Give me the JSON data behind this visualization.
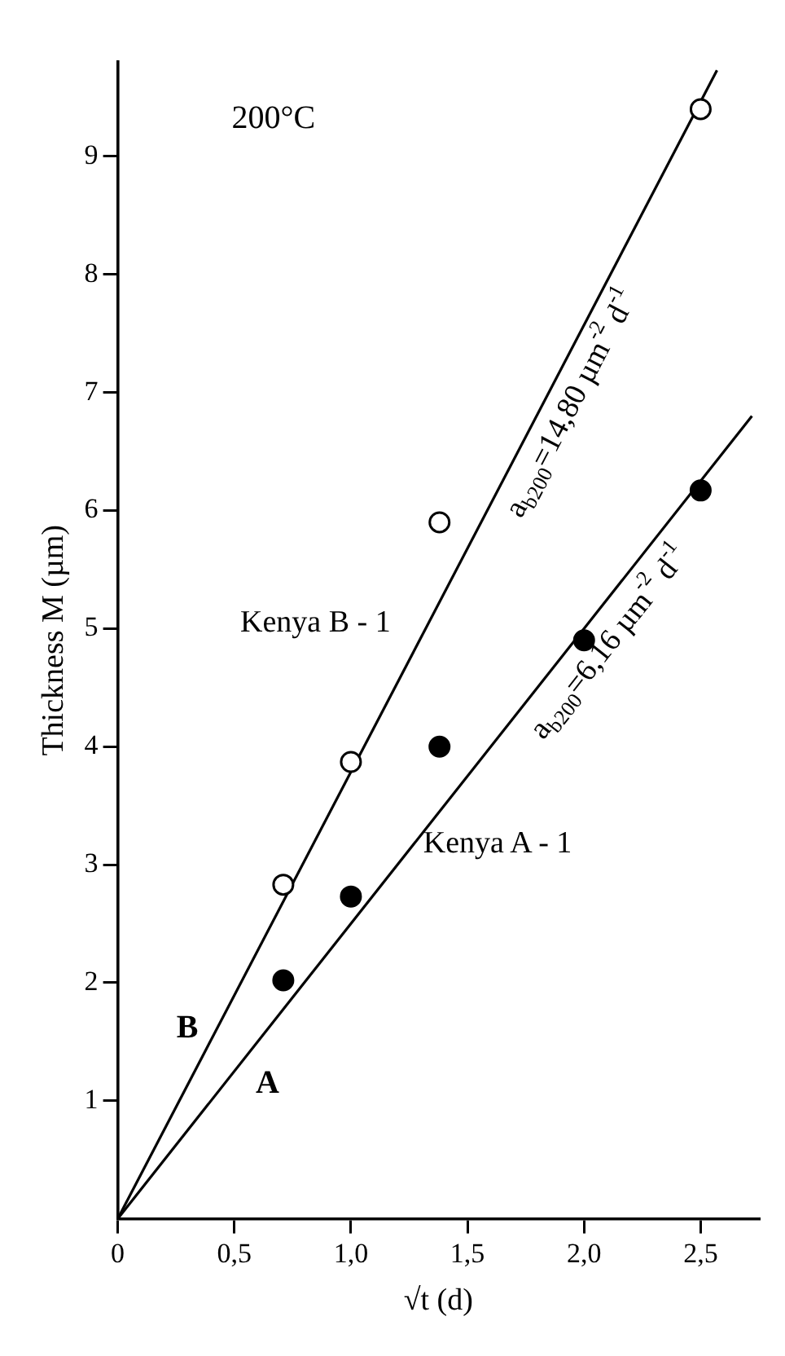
{
  "chart_data": {
    "type": "scatter",
    "title": "200°C",
    "xlabel": "√t (d)",
    "ylabel": "Thickness M (µm)",
    "xlim": [
      0,
      2.75
    ],
    "ylim": [
      0,
      9.8
    ],
    "xticks": [
      0,
      {
        "value": 0.5,
        "label": "0,5"
      },
      {
        "value": 1.0,
        "label": "1,0"
      },
      {
        "value": 1.5,
        "label": "1,5"
      },
      {
        "value": 2.0,
        "label": "2,0"
      },
      {
        "value": 2.5,
        "label": "2,5"
      }
    ],
    "yticks": [
      1,
      2,
      3,
      4,
      5,
      6,
      7,
      8,
      9
    ],
    "grid": false,
    "legend": false,
    "marker": "circle",
    "series": [
      {
        "name": "Kenya B - 1",
        "type": "scatter",
        "color": "#ffffff",
        "x": [
          0.71,
          1.0,
          1.38,
          2.5
        ],
        "values": [
          2.83,
          3.87,
          5.9,
          9.4
        ]
      },
      {
        "name": "Kenya A - 1",
        "type": "scatter",
        "color": "#000000",
        "x": [
          0.71,
          1.0,
          1.38,
          2.0,
          2.5
        ],
        "values": [
          2.02,
          2.73,
          4.0,
          4.9,
          6.17
        ]
      },
      {
        "type": "line",
        "color": "#000000",
        "marker": "none",
        "x": [
          0,
          2.57
        ],
        "values": [
          0,
          9.73
        ]
      },
      {
        "type": "line",
        "color": "#000000",
        "marker": "none",
        "x": [
          0,
          2.72
        ],
        "values": [
          0,
          6.8
        ]
      }
    ],
    "annotations": [
      "a$_{b200}$=14,80 µm$^{-2}$ d$^{-1}$",
      "a$_{b200}$=6,16 µm$^{-2}$ d$^{-1}$",
      "B",
      "A"
    ]
  }
}
